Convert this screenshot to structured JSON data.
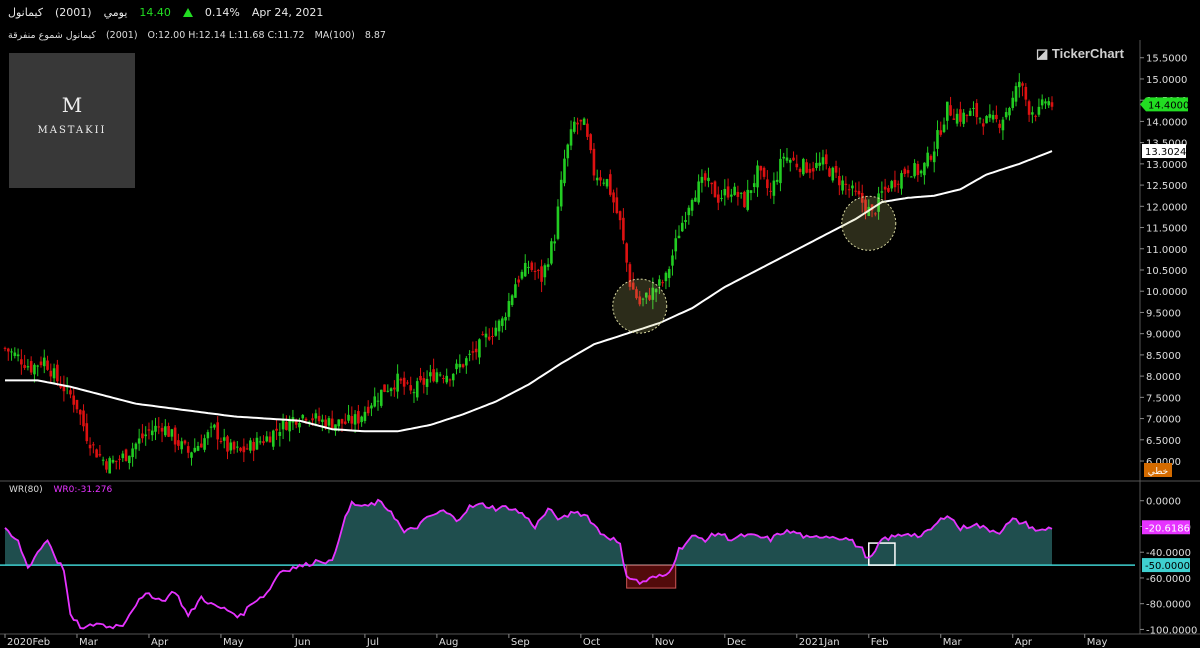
{
  "header": {
    "name": "كيمانول",
    "code": "(2001)",
    "period": "يومي",
    "price": "14.40",
    "change": "0.14%",
    "date": "Apr 24, 2021",
    "line2_name": "كيمانول شموع منفرقة",
    "line2_code": "(2001)",
    "ohlc": "O:12.00  H:12.14  L:11.68  C:11.72",
    "ma_label": "MA(100)",
    "ma_value": "8.87"
  },
  "logo": {
    "mark": "M",
    "name": "MASTAKII"
  },
  "brand": "TickerChart",
  "colors": {
    "up": "#22cc22",
    "down": "#dd1111",
    "ma": "#ffffff",
    "wr": "#e633ff",
    "wr_fill": "#1f4e4e",
    "level": "#3fd0d0",
    "price_tag": "#22dd22"
  },
  "chart_data": [
    {
      "type": "candlestick",
      "ma_period": 100,
      "ylim": [
        5.6,
        15.8
      ],
      "ytick_labels": [
        "15.5000",
        "15.0000",
        "14.5000",
        "14.0000",
        "13.5000",
        "13.0000",
        "12.5000",
        "12.0000",
        "11.5000",
        "11.0000",
        "10.5000",
        "10.0000",
        "9.5000",
        "9.0000",
        "8.5000",
        "8.0000",
        "7.5000",
        "7.0000",
        "6.5000",
        "6.0000"
      ],
      "ytick_values": [
        15.5,
        15.0,
        14.5,
        14.0,
        13.5,
        13.0,
        12.5,
        12.0,
        11.5,
        11.0,
        10.5,
        10.0,
        9.5,
        9.0,
        8.5,
        8.0,
        7.5,
        7.0,
        6.5,
        6.0
      ],
      "last_price_label": "14.4000",
      "last_price": 14.4,
      "ma_last_label": "13.3024",
      "ma_last": 13.3024,
      "axis_tag": "خطي",
      "month_labels": [
        "2020Feb",
        "Mar",
        "Apr",
        "May",
        "Jun",
        "Jul",
        "Aug",
        "Sep",
        "Oct",
        "Nov",
        "Dec",
        "2021Jan",
        "Feb",
        "Mar",
        "Apr",
        "May"
      ],
      "month_index": [
        0,
        22,
        44,
        66,
        88,
        110,
        132,
        154,
        176,
        198,
        220,
        242,
        264,
        286,
        308,
        330
      ],
      "anchors": [
        [
          0,
          8.65
        ],
        [
          4,
          8.45
        ],
        [
          8,
          8.2
        ],
        [
          12,
          8.4
        ],
        [
          16,
          7.9
        ],
        [
          20,
          7.55
        ],
        [
          22,
          7.3
        ],
        [
          25,
          6.6
        ],
        [
          28,
          6.2
        ],
        [
          31,
          5.95
        ],
        [
          34,
          6.0
        ],
        [
          37,
          6.15
        ],
        [
          40,
          6.4
        ],
        [
          44,
          6.7
        ],
        [
          48,
          6.85
        ],
        [
          52,
          6.5
        ],
        [
          56,
          6.2
        ],
        [
          60,
          6.45
        ],
        [
          64,
          6.75
        ],
        [
          68,
          6.3
        ],
        [
          72,
          6.2
        ],
        [
          76,
          6.4
        ],
        [
          80,
          6.55
        ],
        [
          84,
          6.8
        ],
        [
          88,
          7.0
        ],
        [
          92,
          7.1
        ],
        [
          96,
          6.95
        ],
        [
          100,
          6.9
        ],
        [
          104,
          6.9
        ],
        [
          108,
          7.0
        ],
        [
          112,
          7.4
        ],
        [
          116,
          7.7
        ],
        [
          120,
          7.9
        ],
        [
          124,
          7.6
        ],
        [
          128,
          7.85
        ],
        [
          132,
          8.1
        ],
        [
          136,
          8.05
        ],
        [
          140,
          8.3
        ],
        [
          144,
          8.6
        ],
        [
          148,
          9.0
        ],
        [
          152,
          9.3
        ],
        [
          156,
          10.2
        ],
        [
          160,
          10.6
        ],
        [
          164,
          10.3
        ],
        [
          168,
          11.3
        ],
        [
          171,
          13.1
        ],
        [
          174,
          13.95
        ],
        [
          177,
          13.9
        ],
        [
          180,
          12.8
        ],
        [
          184,
          12.6
        ],
        [
          188,
          11.6
        ],
        [
          191,
          10.2
        ],
        [
          194,
          9.7
        ],
        [
          198,
          10.0
        ],
        [
          202,
          10.3
        ],
        [
          206,
          11.4
        ],
        [
          210,
          12.3
        ],
        [
          214,
          12.6
        ],
        [
          218,
          12.2
        ],
        [
          222,
          12.4
        ],
        [
          226,
          12.1
        ],
        [
          230,
          12.8
        ],
        [
          234,
          12.3
        ],
        [
          238,
          13.2
        ],
        [
          242,
          13.0
        ],
        [
          246,
          12.9
        ],
        [
          250,
          13.0
        ],
        [
          254,
          12.7
        ],
        [
          258,
          12.4
        ],
        [
          262,
          12.1
        ],
        [
          265,
          11.8
        ],
        [
          268,
          12.3
        ],
        [
          272,
          12.6
        ],
        [
          276,
          12.9
        ],
        [
          280,
          12.8
        ],
        [
          284,
          13.4
        ],
        [
          288,
          14.3
        ],
        [
          292,
          14.1
        ],
        [
          296,
          14.2
        ],
        [
          300,
          14.0
        ],
        [
          304,
          14.0
        ],
        [
          308,
          14.5
        ],
        [
          310,
          14.95
        ],
        [
          313,
          14.3
        ],
        [
          316,
          14.2
        ],
        [
          318,
          14.5
        ],
        [
          320,
          14.4
        ]
      ],
      "ma_anchors": [
        [
          0,
          7.9
        ],
        [
          10,
          7.9
        ],
        [
          20,
          7.75
        ],
        [
          30,
          7.55
        ],
        [
          40,
          7.35
        ],
        [
          50,
          7.25
        ],
        [
          60,
          7.15
        ],
        [
          70,
          7.05
        ],
        [
          80,
          7.0
        ],
        [
          90,
          6.95
        ],
        [
          100,
          6.75
        ],
        [
          110,
          6.7
        ],
        [
          120,
          6.7
        ],
        [
          130,
          6.85
        ],
        [
          140,
          7.1
        ],
        [
          150,
          7.4
        ],
        [
          160,
          7.8
        ],
        [
          170,
          8.3
        ],
        [
          180,
          8.75
        ],
        [
          190,
          9.0
        ],
        [
          200,
          9.25
        ],
        [
          210,
          9.6
        ],
        [
          220,
          10.1
        ],
        [
          230,
          10.5
        ],
        [
          240,
          10.9
        ],
        [
          250,
          11.3
        ],
        [
          260,
          11.7
        ],
        [
          268,
          12.1
        ],
        [
          276,
          12.2
        ],
        [
          284,
          12.25
        ],
        [
          292,
          12.4
        ],
        [
          300,
          12.75
        ],
        [
          310,
          13.0
        ],
        [
          320,
          13.3
        ]
      ],
      "circles": [
        [
          194,
          9.65
        ],
        [
          264,
          11.6
        ]
      ]
    },
    {
      "type": "line",
      "indicator": "WR(80)",
      "current_label": "WR0:-31.276",
      "ylim": [
        -102,
        6
      ],
      "ytick_labels": [
        "0.0000",
        "-20.0000",
        "-40.0000",
        "-60.0000",
        "-80.0000",
        "-100.0000"
      ],
      "ytick_values": [
        0,
        -20,
        -40,
        -60,
        -80,
        -100
      ],
      "level": -50,
      "level_label": "-50.0000",
      "last_label": "-20.6186",
      "last": -20.6186,
      "wr_anchors": [
        [
          0,
          -23
        ],
        [
          4,
          -32
        ],
        [
          7,
          -52
        ],
        [
          10,
          -40
        ],
        [
          13,
          -30
        ],
        [
          16,
          -47
        ],
        [
          18,
          -53
        ],
        [
          20,
          -90
        ],
        [
          24,
          -100
        ],
        [
          28,
          -95
        ],
        [
          32,
          -98
        ],
        [
          36,
          -96
        ],
        [
          40,
          -80
        ],
        [
          44,
          -72
        ],
        [
          48,
          -78
        ],
        [
          52,
          -70
        ],
        [
          56,
          -90
        ],
        [
          60,
          -75
        ],
        [
          64,
          -82
        ],
        [
          68,
          -85
        ],
        [
          72,
          -90
        ],
        [
          76,
          -78
        ],
        [
          80,
          -72
        ],
        [
          84,
          -55
        ],
        [
          88,
          -52
        ],
        [
          92,
          -50
        ],
        [
          96,
          -46
        ],
        [
          100,
          -48
        ],
        [
          103,
          -20
        ],
        [
          106,
          -2
        ],
        [
          110,
          -5
        ],
        [
          114,
          -1
        ],
        [
          118,
          -8
        ],
        [
          122,
          -25
        ],
        [
          126,
          -20
        ],
        [
          130,
          -12
        ],
        [
          134,
          -8
        ],
        [
          138,
          -15
        ],
        [
          142,
          -5
        ],
        [
          146,
          -3
        ],
        [
          150,
          -6
        ],
        [
          154,
          -5
        ],
        [
          158,
          -10
        ],
        [
          162,
          -20
        ],
        [
          166,
          -7
        ],
        [
          170,
          -15
        ],
        [
          174,
          -8
        ],
        [
          178,
          -12
        ],
        [
          182,
          -25
        ],
        [
          186,
          -30
        ],
        [
          188,
          -35
        ],
        [
          190,
          -58
        ],
        [
          194,
          -64
        ],
        [
          198,
          -60
        ],
        [
          202,
          -58
        ],
        [
          204,
          -50
        ],
        [
          206,
          -38
        ],
        [
          210,
          -28
        ],
        [
          214,
          -30
        ],
        [
          218,
          -25
        ],
        [
          222,
          -30
        ],
        [
          226,
          -27
        ],
        [
          230,
          -28
        ],
        [
          234,
          -30
        ],
        [
          238,
          -24
        ],
        [
          242,
          -25
        ],
        [
          246,
          -30
        ],
        [
          250,
          -27
        ],
        [
          254,
          -28
        ],
        [
          258,
          -30
        ],
        [
          262,
          -38
        ],
        [
          264,
          -46
        ],
        [
          266,
          -40
        ],
        [
          268,
          -30
        ],
        [
          272,
          -28
        ],
        [
          276,
          -25
        ],
        [
          280,
          -28
        ],
        [
          284,
          -20
        ],
        [
          288,
          -10
        ],
        [
          292,
          -22
        ],
        [
          296,
          -18
        ],
        [
          300,
          -22
        ],
        [
          304,
          -24
        ],
        [
          308,
          -15
        ],
        [
          312,
          -18
        ],
        [
          316,
          -24
        ],
        [
          320,
          -20.6
        ]
      ],
      "zones": [
        [
          190,
          205
        ],
        [
          264,
          272
        ]
      ]
    }
  ]
}
